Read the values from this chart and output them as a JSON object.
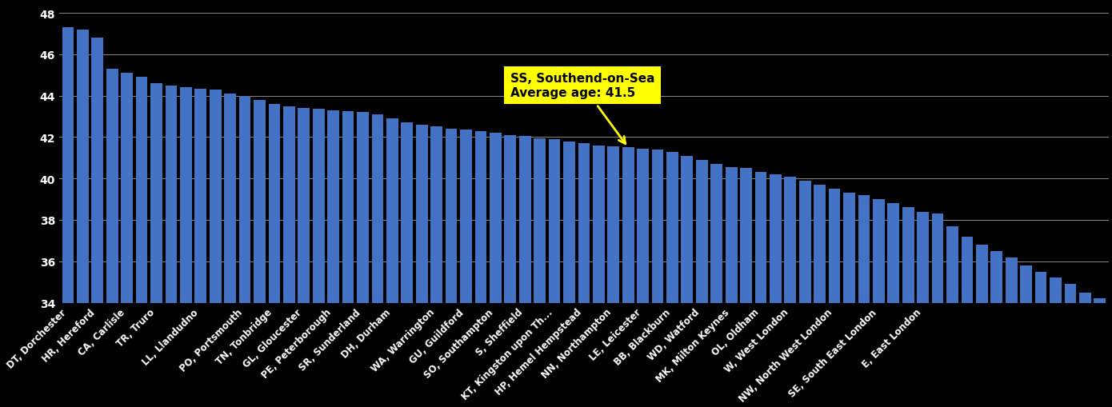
{
  "categories": [
    "DT, Dorchester",
    "HR, Hereford",
    "CA, Carlisle",
    "TR, Truro",
    "LL, Llandudno",
    "PO, Portsmouth",
    "TN, Tonbridge",
    "GL, Gloucester",
    "PE, Peterborough",
    "SR, Sunderland",
    "DH, Durham",
    "WA, Warrington",
    "GU, Guildford",
    "SO, Southampton",
    "SS, Southend-on-Sea",
    "S, Sheffield",
    "KT, Kingston upon Th...",
    "HP, Hemel Hempstead",
    "NN, Northampton",
    "LE, Leicester",
    "BB, Blackburn",
    "WD, Watford",
    "MK, Milton Keynes",
    "OL, Oldham",
    "W, West London",
    "NW, North West London",
    "SE, South East London",
    "E, East London"
  ],
  "values": [
    47.3,
    47.2,
    46.8,
    45.3,
    45.1,
    44.9,
    44.6,
    44.5,
    44.4,
    44.35,
    44.3,
    44.1,
    44.0,
    43.8,
    43.6,
    43.5,
    43.4,
    43.35,
    43.3,
    43.25,
    43.2,
    43.1,
    42.9,
    42.7,
    42.6,
    42.5,
    42.4,
    42.35,
    42.3,
    42.2,
    42.1,
    42.05,
    41.95,
    41.9,
    41.8,
    41.7,
    41.6,
    41.55,
    41.5,
    41.45,
    41.4,
    41.3,
    41.1,
    40.9,
    40.7,
    40.55,
    40.5,
    40.3,
    40.2,
    40.1,
    39.9,
    39.7,
    39.5,
    39.3,
    39.2,
    39.0,
    38.8,
    38.6,
    38.4,
    38.3,
    37.7,
    37.2,
    36.8,
    36.5,
    36.2,
    35.8,
    35.5,
    35.2,
    34.9,
    34.5,
    34.2
  ],
  "xtick_labels": {
    "0": "DT, Dorchester",
    "2": "HR, Hereford",
    "4": "CA, Carlisle",
    "6": "TR, Truro",
    "9": "LL, Llandudno",
    "12": "PO, Portsmouth",
    "14": "TN, Tonbridge",
    "16": "GL, Gloucester",
    "18": "PE, Peterborough",
    "20": "SR, Sunderland",
    "22": "DH, Durham",
    "25": "WA, Warrington",
    "27": "GU, Guildford",
    "29": "SO, Southampton",
    "31": "S, Sheffield",
    "33": "KT, Kingston upon Th...",
    "35": "HP, Hemel Hempstead",
    "37": "NN, Northampton",
    "39": "LE, Leicester",
    "41": "BB, Blackburn",
    "43": "WD, Watford",
    "45": "MK, Milton Keynes",
    "47": "OL, Oldham",
    "49": "W, West London",
    "52": "NW, North West London",
    "55": "SE, South East London",
    "58": "E, East London"
  },
  "highlight_bar_index": 38,
  "highlight_text": "SS, Southend-on-Sea\nAverage age: 41.5",
  "bar_color": "#4472c4",
  "background_color": "#000000",
  "text_color": "#ffffff",
  "grid_color": "#888888",
  "ylim_min": 34,
  "ylim_max": 48.5,
  "yticks": [
    34,
    36,
    38,
    40,
    42,
    44,
    46,
    48
  ],
  "annotation_bg": "#ffff00",
  "annotation_fontsize": 11,
  "bar_width": 0.8
}
